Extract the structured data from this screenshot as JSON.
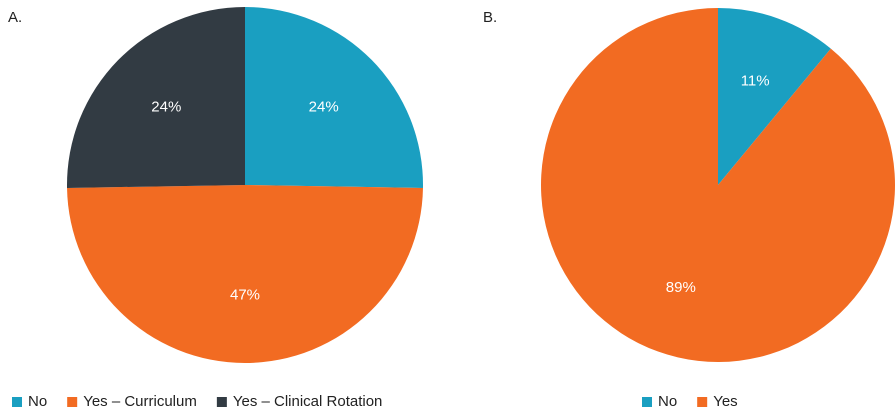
{
  "chart_data": [
    {
      "type": "pie",
      "title": "A.",
      "categories": [
        "No",
        "Yes – Curriculum",
        "Yes – Clinical Rotation"
      ],
      "values": [
        24,
        47,
        24
      ],
      "value_labels": [
        "24%",
        "47%",
        "24%"
      ],
      "colors": [
        "#1a9fc1",
        "#f26b22",
        "#323b43"
      ]
    },
    {
      "type": "pie",
      "title": "B.",
      "categories": [
        "No",
        "Yes"
      ],
      "values": [
        11,
        89
      ],
      "value_labels": [
        "11%",
        "89%"
      ],
      "colors": [
        "#1a9fc1",
        "#f26b22"
      ]
    }
  ]
}
